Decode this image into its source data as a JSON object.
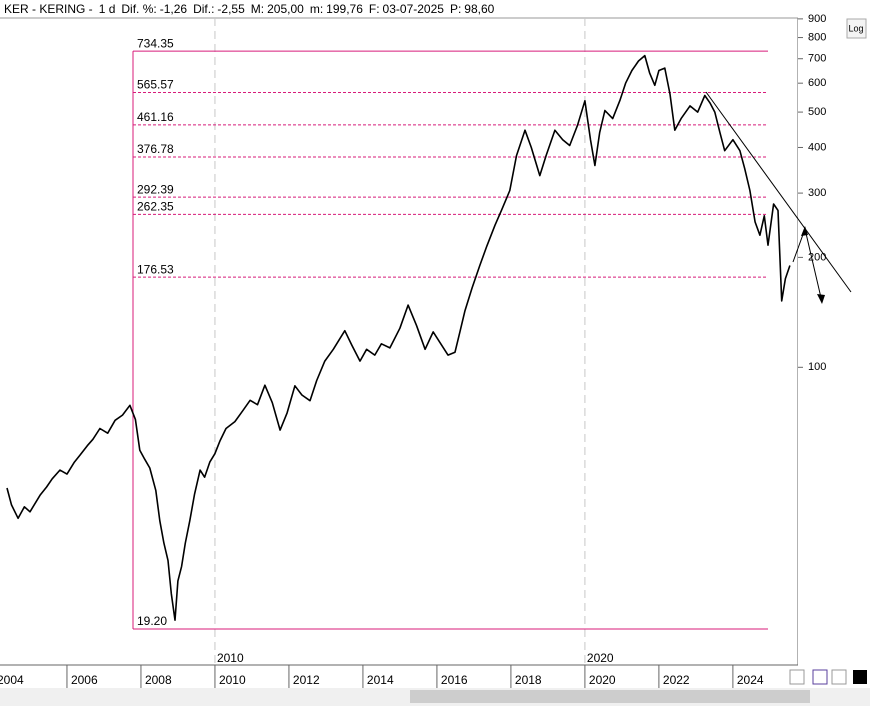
{
  "header": {
    "symbol": "KER - KERING -",
    "period": "1 d",
    "items": [
      {
        "label": "Dif. %:",
        "value": "-1,26",
        "color": "#e0302a"
      },
      {
        "label": "Dif.:",
        "value": "-2,55",
        "color": "#e0302a"
      },
      {
        "label": "M:",
        "value": "205,00",
        "color": "#000000"
      },
      {
        "label": "m:",
        "value": "199,76",
        "color": "#000000"
      },
      {
        "label": "F:",
        "value": "03-07-2025",
        "color": "#000000"
      },
      {
        "label": "P:",
        "value": "98,60",
        "color": "#e0302a"
      }
    ]
  },
  "log_button": "Log",
  "chart_data": {
    "type": "line",
    "log_scale": true,
    "color": "#000000",
    "level_color": "#d81b7a",
    "x": [
      2004.38,
      2004.5,
      2004.68,
      2004.85,
      2005.0,
      2005.27,
      2005.45,
      2005.6,
      2005.81,
      2006.0,
      2006.2,
      2006.35,
      2006.55,
      2006.7,
      2006.89,
      2007.1,
      2007.3,
      2007.5,
      2007.7,
      2007.85,
      2007.97,
      2008.1,
      2008.24,
      2008.4,
      2008.51,
      2008.62,
      2008.73,
      2008.82,
      2008.92,
      2009.0,
      2009.1,
      2009.2,
      2009.32,
      2009.45,
      2009.6,
      2009.72,
      2009.86,
      2010.0,
      2010.14,
      2010.3,
      2010.54,
      2010.75,
      2010.95,
      2011.15,
      2011.35,
      2011.55,
      2011.76,
      2011.95,
      2012.16,
      2012.35,
      2012.57,
      2012.75,
      2012.97,
      2013.2,
      2013.51,
      2013.7,
      2013.92,
      2014.1,
      2014.32,
      2014.5,
      2014.73,
      2015.0,
      2015.22,
      2015.45,
      2015.68,
      2015.9,
      2016.08,
      2016.3,
      2016.49,
      2016.62,
      2016.76,
      2016.95,
      2017.16,
      2017.35,
      2017.57,
      2017.75,
      2017.97,
      2018.15,
      2018.38,
      2018.55,
      2018.78,
      2018.95,
      2019.19,
      2019.4,
      2019.59,
      2019.8,
      2020.0,
      2020.15,
      2020.27,
      2020.4,
      2020.54,
      2020.75,
      2020.95,
      2021.1,
      2021.27,
      2021.45,
      2021.62,
      2021.75,
      2021.89,
      2022.0,
      2022.16,
      2022.3,
      2022.43,
      2022.6,
      2022.84,
      2023.05,
      2023.24,
      2023.38,
      2023.51,
      2023.65,
      2023.78,
      2024.0,
      2024.19,
      2024.32,
      2024.46,
      2024.6,
      2024.73,
      2024.85,
      2024.95,
      2025.1,
      2025.22,
      2025.32,
      2025.42,
      2025.54
    ],
    "values": [
      46.7,
      42.0,
      38.6,
      41.5,
      40.2,
      44.6,
      47.0,
      49.5,
      52.3,
      51.0,
      55.0,
      57.4,
      61.0,
      63.5,
      68.0,
      66.0,
      71.6,
      74.0,
      78.7,
      72.0,
      59.3,
      56.0,
      53.0,
      46.0,
      38.0,
      33.0,
      29.6,
      24.0,
      20.3,
      26.0,
      28.5,
      33.0,
      38.0,
      45.0,
      52.3,
      50.0,
      55.0,
      58.0,
      63.0,
      68.0,
      71.0,
      76.0,
      81.2,
      79.0,
      89.3,
      80.0,
      67.3,
      75.0,
      89.0,
      84.0,
      81.0,
      92.0,
      104.0,
      112.0,
      126.0,
      115.0,
      104.0,
      112.0,
      108.0,
      116.0,
      113.0,
      128.0,
      148.0,
      130.0,
      112.0,
      125.0,
      117.0,
      108.0,
      110.0,
      125.0,
      143.0,
      165.0,
      190.0,
      215.0,
      245.0,
      270.0,
      305.0,
      380.0,
      446.0,
      400.0,
      335.0,
      380.0,
      446.0,
      420.0,
      405.0,
      460.0,
      537.0,
      420.0,
      357.0,
      440.0,
      505.0,
      480.0,
      540.0,
      600.0,
      650.0,
      690.0,
      714.0,
      640.0,
      592.0,
      650.0,
      660.0,
      560.0,
      446.0,
      480.0,
      520.0,
      500.0,
      555.0,
      530.0,
      500.0,
      440.0,
      392.0,
      420.0,
      392.0,
      350.0,
      305.0,
      250.0,
      230.0,
      260.0,
      216.0,
      280.0,
      269.0,
      152.0,
      175.0,
      190.0
    ],
    "xlim": [
      2004.19,
      2025.76
    ],
    "ylim": [
      15.3,
      905
    ],
    "yticks": [
      100,
      200,
      300,
      400,
      500,
      600,
      700,
      800,
      900
    ],
    "xticks": [
      2004,
      2006,
      2008,
      2010,
      2012,
      2014,
      2016,
      2018,
      2020,
      2022,
      2024
    ],
    "major_xticks": [
      2010,
      2020
    ],
    "levels": [
      734.35,
      565.57,
      461.16,
      376.78,
      292.39,
      262.35,
      176.53,
      {
        "value": 19.2,
        "label": "19.20"
      }
    ]
  }
}
